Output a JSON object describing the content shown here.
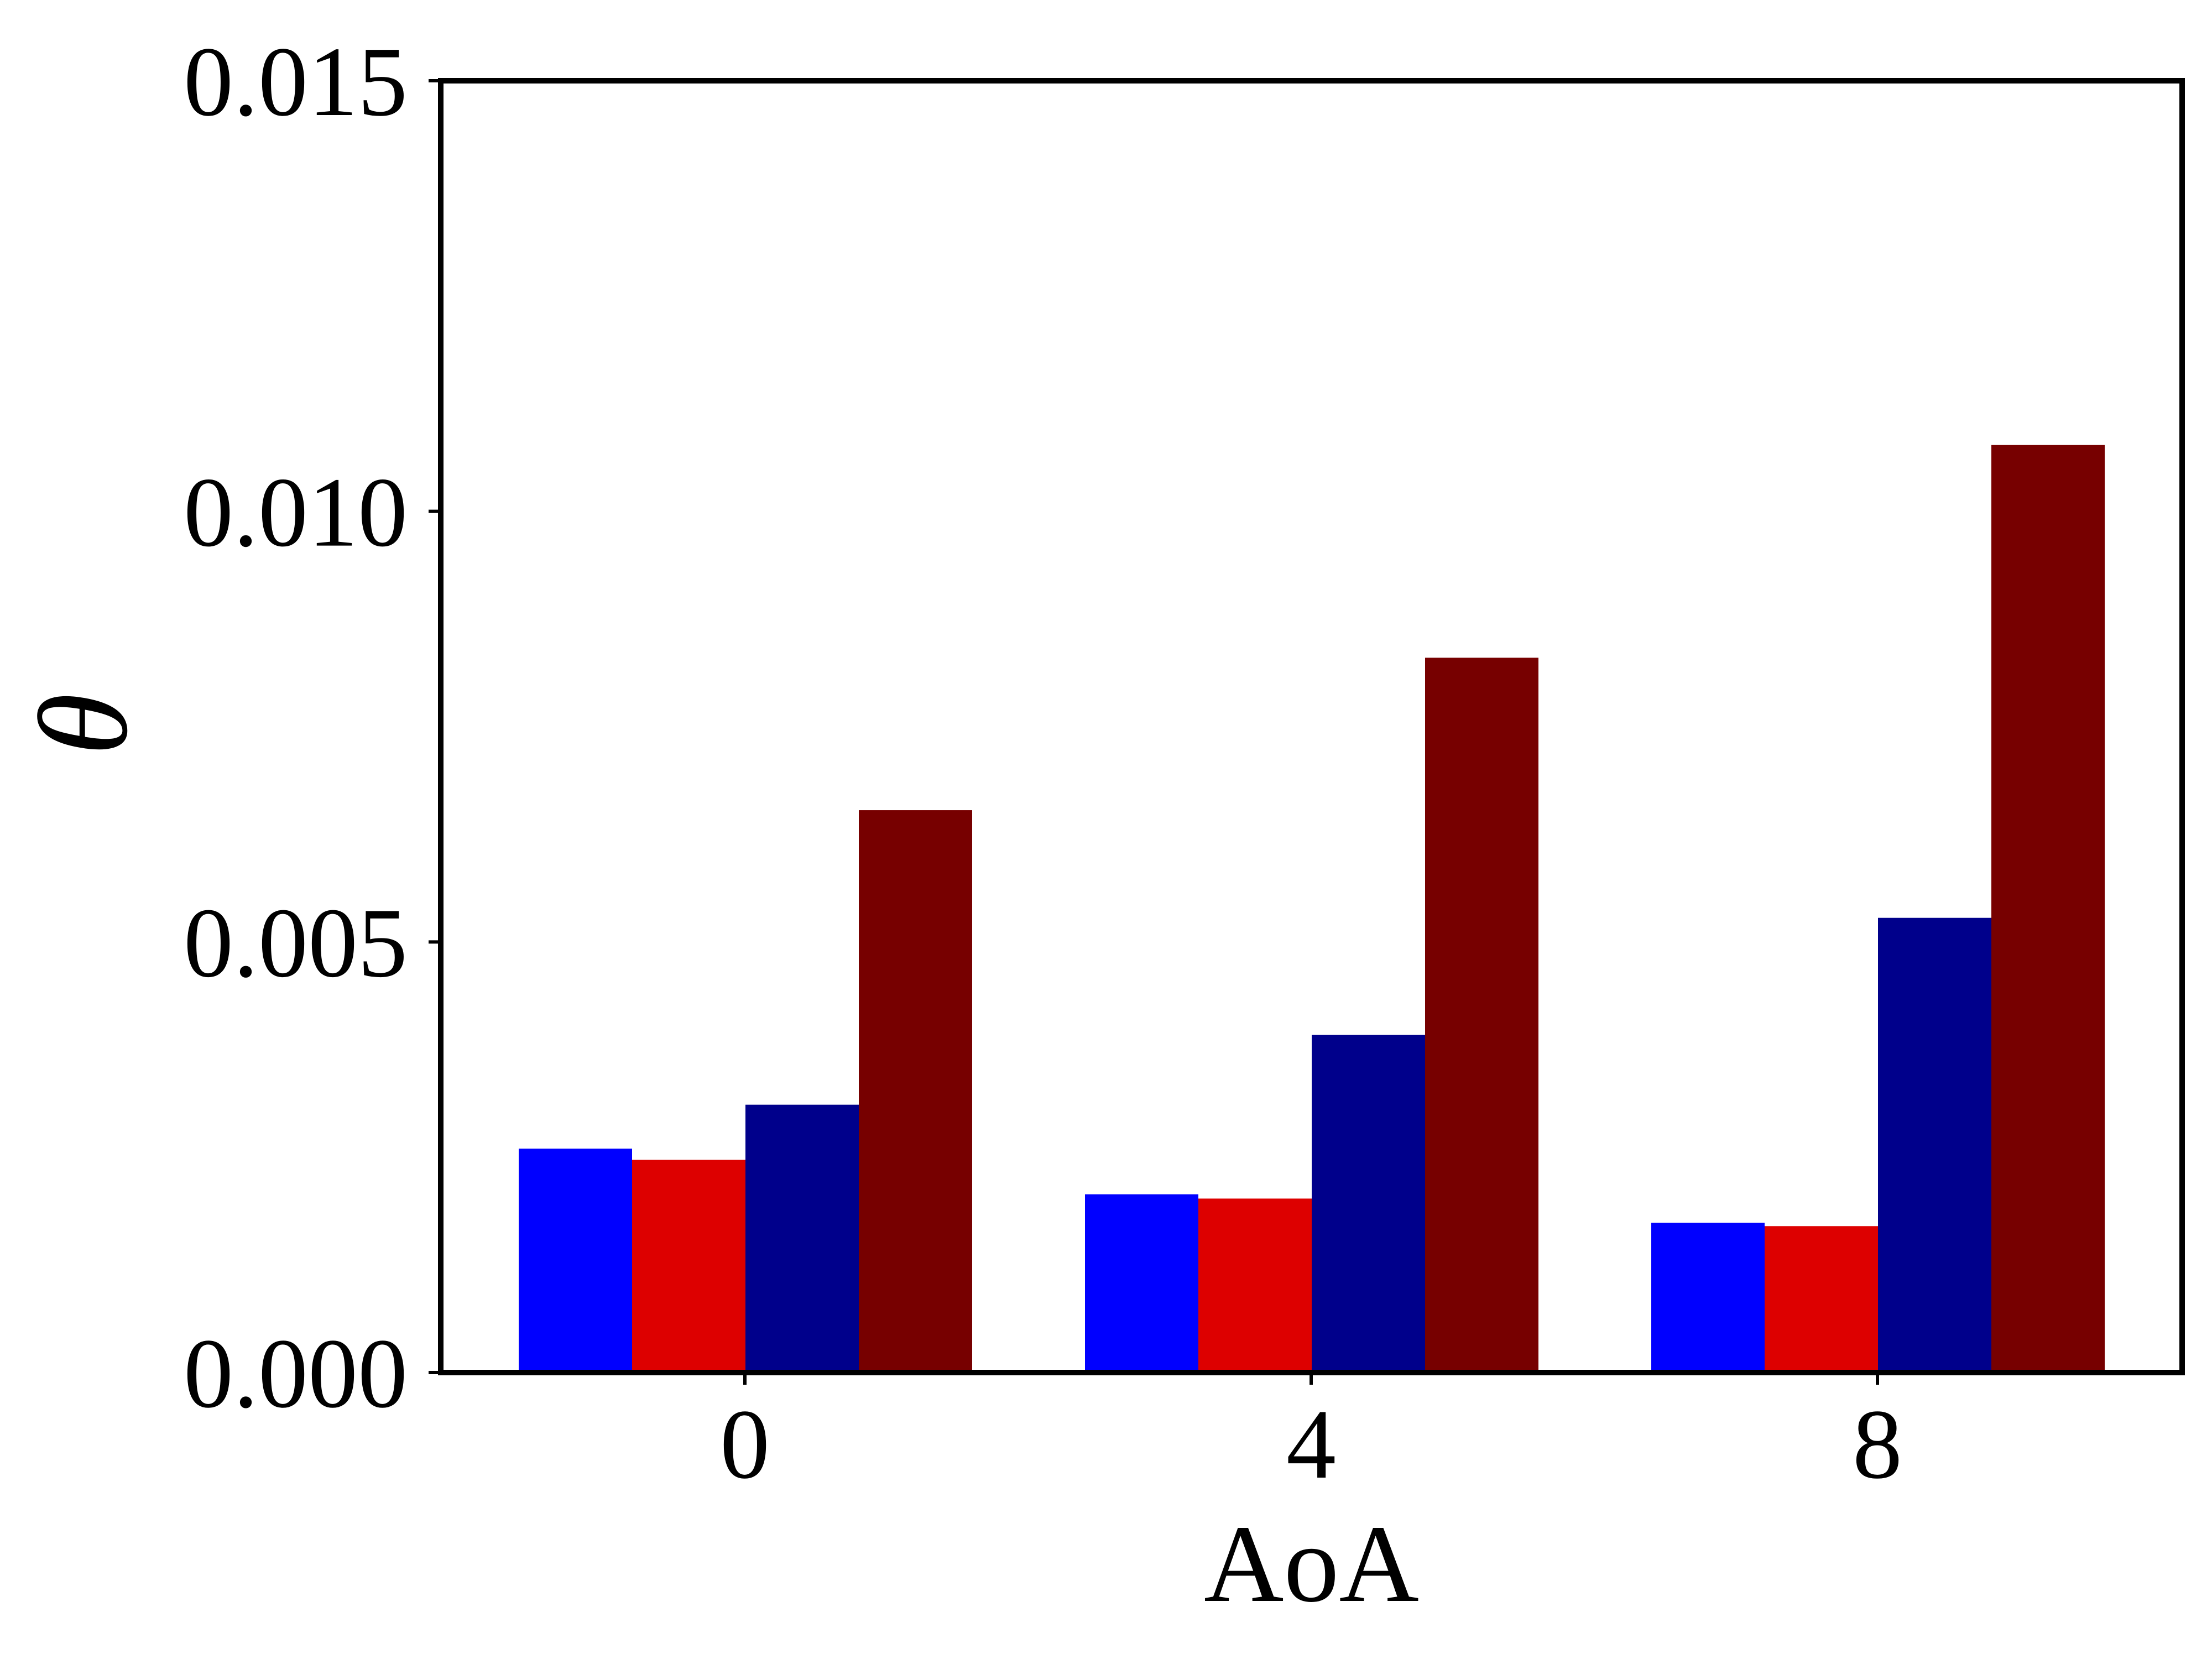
{
  "chart_data": {
    "type": "bar",
    "title": "",
    "xlabel": "AoA",
    "ylabel": "θ",
    "categories": [
      "0",
      "4",
      "8"
    ],
    "ylim": [
      0,
      0.015
    ],
    "yticks": [
      "0.000",
      "0.005",
      "0.010",
      "0.015"
    ],
    "grid": false,
    "legend": "none",
    "series": [
      {
        "color": "#0000ff",
        "values": [
          0.0026,
          0.00207,
          0.00174
        ]
      },
      {
        "color": "#dd0000",
        "values": [
          0.00247,
          0.00202,
          0.0017
        ]
      },
      {
        "color": "#00008b",
        "values": [
          0.00311,
          0.00392,
          0.00528
        ]
      },
      {
        "color": "#770000",
        "values": [
          0.00653,
          0.0083,
          0.01077
        ]
      }
    ]
  }
}
